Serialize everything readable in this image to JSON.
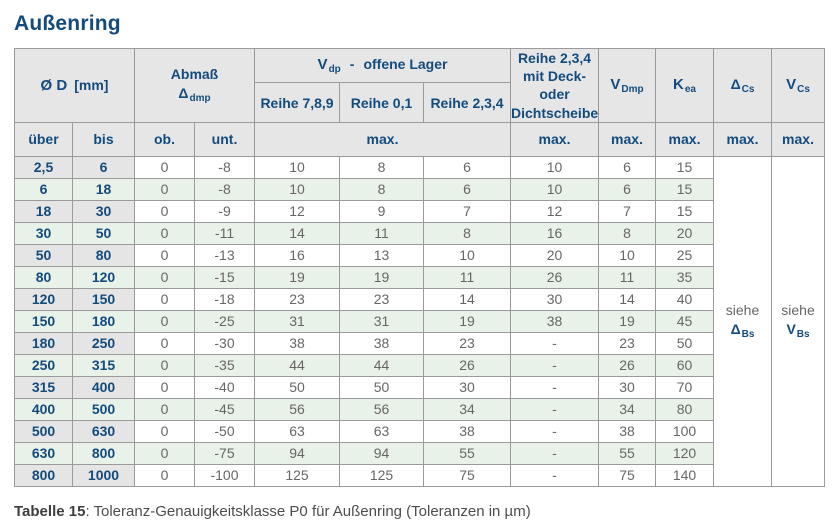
{
  "title": "Außenring",
  "caption": {
    "label": "Tabelle 15",
    "text": ": Toleranz-Genauigkeitsklasse P0 für Außenring (Toleranzen in µm)"
  },
  "colors": {
    "accent_blue": "#134b7d",
    "header_bg": "#e6e6e6",
    "range_column_bg": "#e5e5e5",
    "row_alt_green": "#e9f2e8",
    "border": "#9a9a9a",
    "value_text": "#666666",
    "caption_text": "#4d4d4d"
  },
  "table": {
    "header": {
      "diameter_label": "Ø D",
      "diameter_unit": "[mm]",
      "abmass_label": "Abmaß",
      "abmass_symbol": "Δ",
      "abmass_sub": "dmp",
      "vdp_symbol": "V",
      "vdp_sub": "dp",
      "vdp_dash": "-",
      "vdp_rest": "offene Lager",
      "reihe_789": "Reihe 7,8,9",
      "reihe_01": "Reihe 0,1",
      "reihe_234": "Reihe 2,3,4",
      "deck_lines": [
        "Reihe 2,3,4",
        "mit Deck- oder",
        "Dichtscheiben"
      ],
      "vdmp_symbol": "V",
      "vdmp_sub": "Dmp",
      "kea_symbol": "K",
      "kea_sub": "ea",
      "dcs_symbol": "Δ",
      "dcs_sub": "Cs",
      "vcs_symbol": "V",
      "vcs_sub": "Cs",
      "uber": "über",
      "bis": "bis",
      "ob": "ob.",
      "unt": "unt.",
      "max": "max."
    },
    "see_delta_bs": {
      "prefix": "siehe",
      "symbol": "Δ",
      "sub": "Bs"
    },
    "see_v_bs": {
      "prefix": "siehe",
      "symbol": "V",
      "sub": "Bs"
    },
    "rows": [
      {
        "uber": "2,5",
        "bis": "6",
        "ob": "0",
        "unt": "-8",
        "r789": "10",
        "r01": "8",
        "r234": "6",
        "deck": "10",
        "vdmp": "6",
        "kea": "15"
      },
      {
        "uber": "6",
        "bis": "18",
        "ob": "0",
        "unt": "-8",
        "r789": "10",
        "r01": "8",
        "r234": "6",
        "deck": "10",
        "vdmp": "6",
        "kea": "15"
      },
      {
        "uber": "18",
        "bis": "30",
        "ob": "0",
        "unt": "-9",
        "r789": "12",
        "r01": "9",
        "r234": "7",
        "deck": "12",
        "vdmp": "7",
        "kea": "15"
      },
      {
        "uber": "30",
        "bis": "50",
        "ob": "0",
        "unt": "-11",
        "r789": "14",
        "r01": "11",
        "r234": "8",
        "deck": "16",
        "vdmp": "8",
        "kea": "20"
      },
      {
        "uber": "50",
        "bis": "80",
        "ob": "0",
        "unt": "-13",
        "r789": "16",
        "r01": "13",
        "r234": "10",
        "deck": "20",
        "vdmp": "10",
        "kea": "25"
      },
      {
        "uber": "80",
        "bis": "120",
        "ob": "0",
        "unt": "-15",
        "r789": "19",
        "r01": "19",
        "r234": "11",
        "deck": "26",
        "vdmp": "11",
        "kea": "35"
      },
      {
        "uber": "120",
        "bis": "150",
        "ob": "0",
        "unt": "-18",
        "r789": "23",
        "r01": "23",
        "r234": "14",
        "deck": "30",
        "vdmp": "14",
        "kea": "40"
      },
      {
        "uber": "150",
        "bis": "180",
        "ob": "0",
        "unt": "-25",
        "r789": "31",
        "r01": "31",
        "r234": "19",
        "deck": "38",
        "vdmp": "19",
        "kea": "45"
      },
      {
        "uber": "180",
        "bis": "250",
        "ob": "0",
        "unt": "-30",
        "r789": "38",
        "r01": "38",
        "r234": "23",
        "deck": "-",
        "vdmp": "23",
        "kea": "50"
      },
      {
        "uber": "250",
        "bis": "315",
        "ob": "0",
        "unt": "-35",
        "r789": "44",
        "r01": "44",
        "r234": "26",
        "deck": "-",
        "vdmp": "26",
        "kea": "60"
      },
      {
        "uber": "315",
        "bis": "400",
        "ob": "0",
        "unt": "-40",
        "r789": "50",
        "r01": "50",
        "r234": "30",
        "deck": "-",
        "vdmp": "30",
        "kea": "70"
      },
      {
        "uber": "400",
        "bis": "500",
        "ob": "0",
        "unt": "-45",
        "r789": "56",
        "r01": "56",
        "r234": "34",
        "deck": "-",
        "vdmp": "34",
        "kea": "80"
      },
      {
        "uber": "500",
        "bis": "630",
        "ob": "0",
        "unt": "-50",
        "r789": "63",
        "r01": "63",
        "r234": "38",
        "deck": "-",
        "vdmp": "38",
        "kea": "100"
      },
      {
        "uber": "630",
        "bis": "800",
        "ob": "0",
        "unt": "-75",
        "r789": "94",
        "r01": "94",
        "r234": "55",
        "deck": "-",
        "vdmp": "55",
        "kea": "120"
      },
      {
        "uber": "800",
        "bis": "1000",
        "ob": "0",
        "unt": "-100",
        "r789": "125",
        "r01": "125",
        "r234": "75",
        "deck": "-",
        "vdmp": "75",
        "kea": "140"
      }
    ]
  }
}
